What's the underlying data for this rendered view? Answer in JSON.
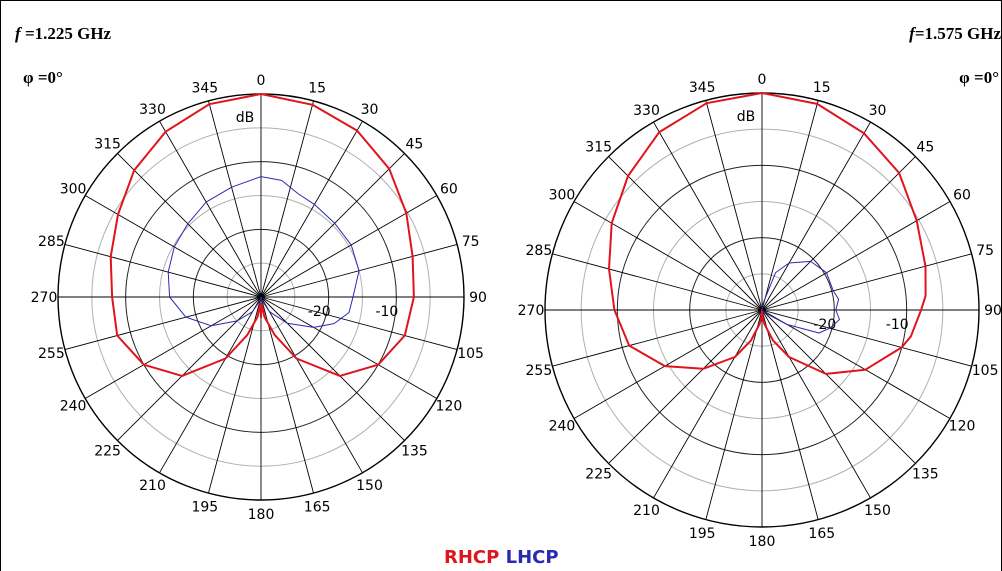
{
  "legend": {
    "rhcp_label": "RHCP",
    "lhcp_label": "LHCP",
    "rhcp_color": "#e0141c",
    "lhcp_color": "#2a2ab0"
  },
  "chart_data": [
    {
      "type": "polar-line",
      "frequency_label": "1.225 GHz",
      "frequency_prefix": "f =",
      "phi_label": "φ =0°",
      "unit_label": "dB",
      "angle_ticks": [
        0,
        15,
        30,
        45,
        60,
        75,
        90,
        105,
        120,
        135,
        150,
        165,
        180,
        195,
        210,
        225,
        240,
        255,
        270,
        285,
        300,
        315,
        330,
        345
      ],
      "radial_rings_db": [
        -30,
        -25,
        -20,
        -15,
        -10,
        -5,
        0
      ],
      "radial_labels": [
        {
          "value": -20,
          "text": "-20"
        },
        {
          "value": -10,
          "text": "-10"
        }
      ],
      "rmin_db": -30,
      "rmax_db": 0,
      "series": [
        {
          "name": "RHCP",
          "theta": [
            0,
            15,
            30,
            45,
            60,
            75,
            90,
            105,
            120,
            135,
            150,
            160,
            170,
            175,
            180,
            185,
            190,
            200,
            210,
            225,
            240,
            255,
            270,
            285,
            300,
            315,
            330,
            345,
            360
          ],
          "gain_db": [
            0,
            -0.6,
            -1.6,
            -3.2,
            -5.2,
            -6.8,
            -7.4,
            -8,
            -10,
            -13.5,
            -19.5,
            -24,
            -27,
            -29,
            -27,
            -29,
            -27,
            -24,
            -19.5,
            -13.5,
            -10,
            -8,
            -8,
            -7,
            -5.6,
            -3.5,
            -1.8,
            -0.5,
            0
          ]
        },
        {
          "name": "LHCP",
          "theta": [
            0,
            10,
            20,
            30,
            45,
            60,
            75,
            90,
            100,
            110,
            120,
            135,
            150,
            165,
            180,
            195,
            210,
            225,
            240,
            255,
            270,
            285,
            300,
            315,
            330,
            345,
            360
          ],
          "gain_db": [
            -12.2,
            -12.5,
            -13.8,
            -14.2,
            -14.6,
            -14.6,
            -15,
            -16.4,
            -16.8,
            -18.5,
            -21,
            -24.5,
            -27.5,
            -29.5,
            -30,
            -29.5,
            -27.5,
            -25,
            -21.5,
            -18.5,
            -16.5,
            -15.8,
            -15.2,
            -14.7,
            -13.8,
            -13.2,
            -12.2
          ]
        }
      ]
    },
    {
      "type": "polar-line",
      "frequency_label": "1.575 GHz",
      "frequency_prefix": "f=",
      "phi_label": "φ =0°",
      "unit_label": "dB",
      "angle_ticks": [
        0,
        15,
        30,
        45,
        60,
        75,
        90,
        105,
        120,
        135,
        150,
        165,
        180,
        195,
        210,
        225,
        240,
        255,
        270,
        285,
        300,
        315,
        330,
        345
      ],
      "radial_rings_db": [
        -30,
        -25,
        -20,
        -15,
        -10,
        -5,
        0
      ],
      "radial_labels": [
        {
          "value": -20,
          "text": "-20"
        },
        {
          "value": -10,
          "text": "-10"
        }
      ],
      "rmin_db": -30,
      "rmax_db": 0,
      "series": [
        {
          "name": "RHCP",
          "theta": [
            0,
            15,
            30,
            45,
            60,
            75,
            85,
            90,
            100,
            105,
            120,
            135,
            150,
            160,
            170,
            175,
            180,
            185,
            190,
            200,
            210,
            225,
            240,
            255,
            270,
            285,
            300,
            315,
            330,
            345,
            360
          ],
          "gain_db": [
            0,
            -0.5,
            -1.8,
            -3.2,
            -5.3,
            -6.6,
            -7.3,
            -8,
            -9.1,
            -10,
            -13.5,
            -17.5,
            -22.5,
            -25.5,
            -28,
            -29,
            -30,
            -29,
            -28,
            -25.5,
            -22.5,
            -18.5,
            -14.5,
            -11,
            -9.6,
            -8.1,
            -6,
            -3.8,
            -1.6,
            -0.4,
            0
          ]
        },
        {
          "name": "LHCP",
          "theta": [
            0,
            10,
            20,
            30,
            45,
            60,
            75,
            82,
            90,
            97,
            105,
            112,
            120,
            135,
            150,
            165,
            180,
            195,
            210,
            225,
            240,
            255,
            270,
            285,
            300,
            315,
            330,
            345,
            360
          ],
          "gain_db": [
            -30,
            -29,
            -24.5,
            -22.5,
            -20.5,
            -19.7,
            -19.8,
            -19.3,
            -19.8,
            -19.2,
            -20.3,
            -21.5,
            -26,
            -29.5,
            -30,
            -30,
            -30,
            -30,
            -30,
            -30,
            -30,
            -30,
            -30,
            -30,
            -30,
            -30,
            -30,
            -30,
            -30
          ]
        }
      ]
    }
  ]
}
